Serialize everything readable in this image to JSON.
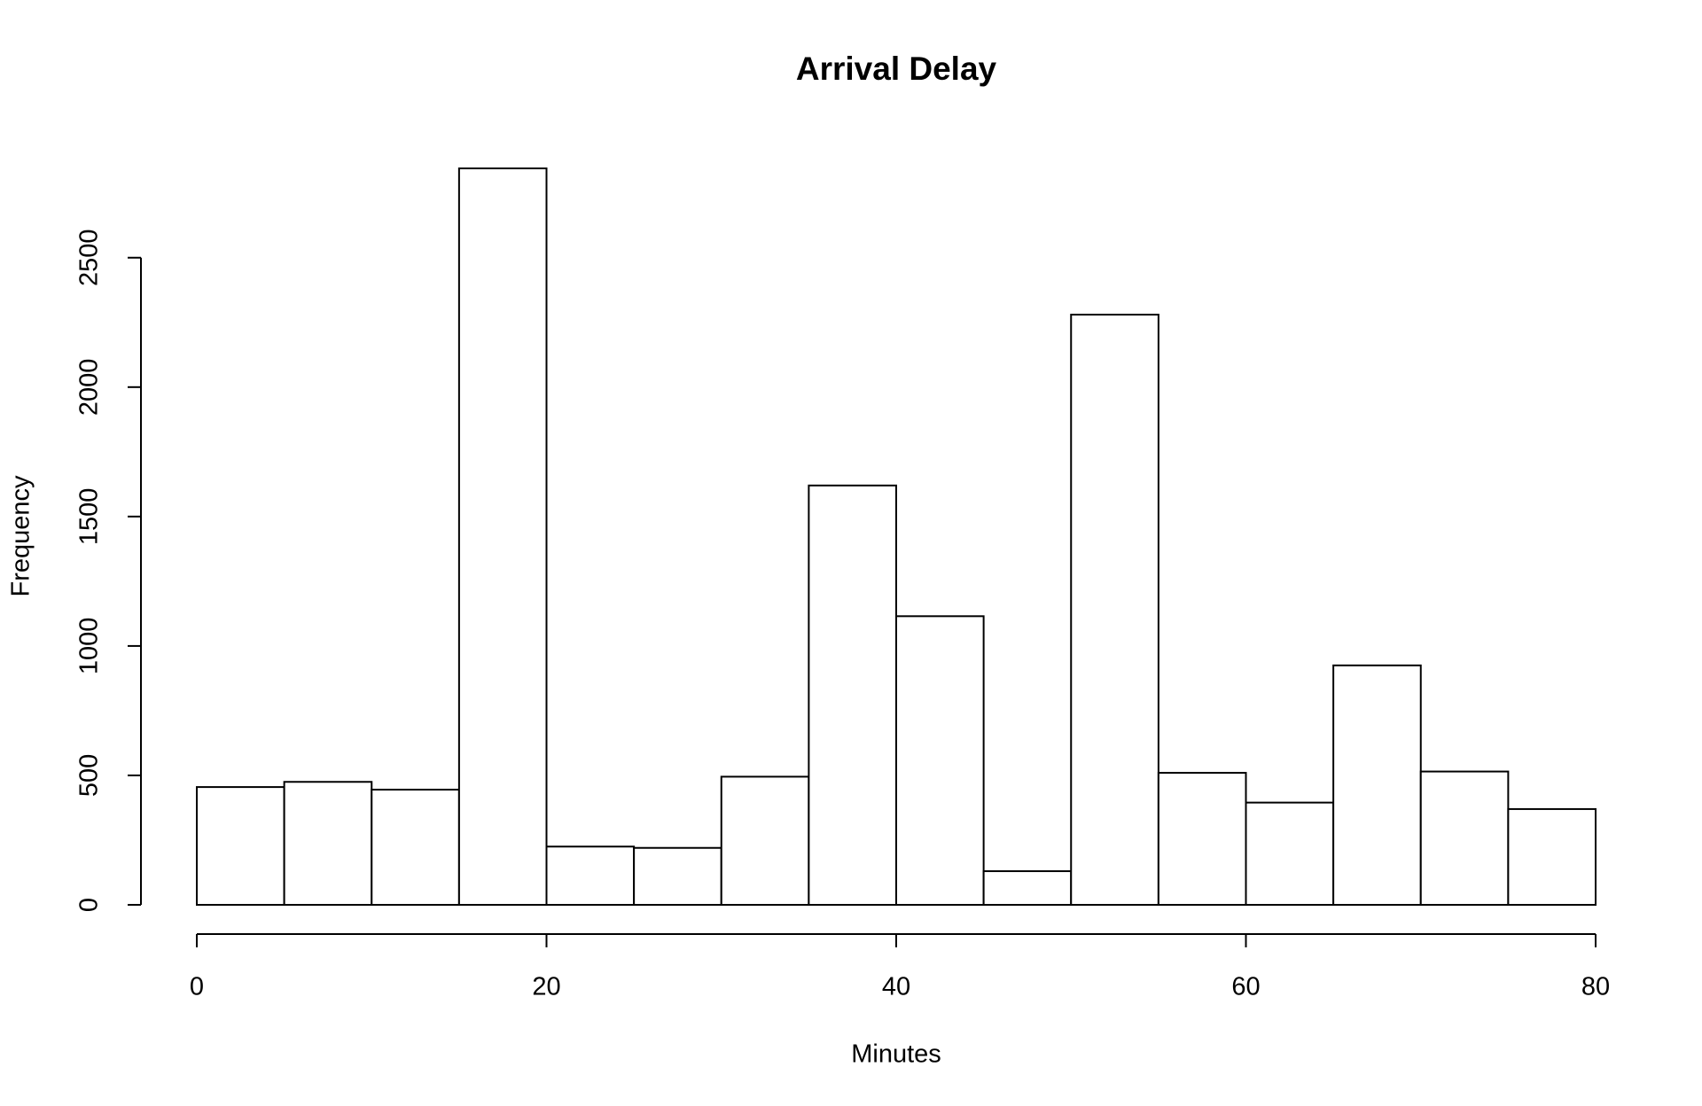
{
  "chart_data": {
    "type": "histogram",
    "title": "Arrival Delay",
    "x_label": "Minutes",
    "y_label": "Frequency",
    "bins": [
      0,
      5,
      10,
      15,
      20,
      25,
      30,
      35,
      40,
      45,
      50,
      55,
      60,
      65,
      70,
      75,
      80
    ],
    "values": [
      455,
      475,
      445,
      2845,
      225,
      220,
      495,
      1620,
      1115,
      130,
      2280,
      510,
      395,
      925,
      515,
      370
    ],
    "color": "#ffffff",
    "xlim": [
      0,
      80
    ],
    "xticks": [
      0,
      20,
      40,
      60,
      80
    ],
    "ylim": [
      0,
      2845
    ],
    "yticks": [
      0,
      500,
      1000,
      1500,
      2000,
      2500
    ],
    "grid": false
  }
}
